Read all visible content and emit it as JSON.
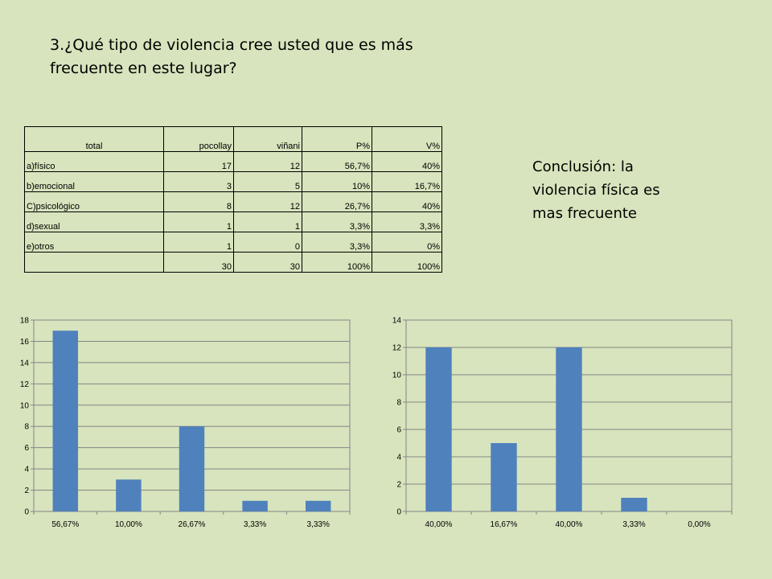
{
  "slide": {
    "title_line1": "3.¿Qué tipo de violencia cree usted que es más",
    "title_line2": "frecuente en este lugar?",
    "conclusion_line1": "Conclusión: la",
    "conclusion_line2": "violencia física es",
    "conclusion_line3": "mas frecuente",
    "background": "#d7e4bd"
  },
  "table": {
    "headers": [
      "total",
      "pocollay",
      "viñani",
      "P%",
      "V%"
    ],
    "rows": [
      [
        "a)físico",
        "17",
        "12",
        "56,7%",
        "40%"
      ],
      [
        "b)emocional",
        "3",
        "5",
        "10%",
        "16,7%"
      ],
      [
        "C)psicológico",
        "8",
        "12",
        "26,7%",
        "40%"
      ],
      [
        "d)sexual",
        "1",
        "1",
        "3,3%",
        "3,3%"
      ],
      [
        "e)otros",
        "1",
        "0",
        "3,3%",
        "0%"
      ],
      [
        "",
        "30",
        "30",
        "100%",
        "100%"
      ]
    ]
  },
  "chart_data": [
    {
      "type": "bar",
      "categories": [
        "56,67%",
        "10,00%",
        "26,67%",
        "3,33%",
        "3,33%"
      ],
      "values": [
        17,
        3,
        8,
        1,
        1
      ],
      "ylim": [
        0,
        18
      ],
      "yticks": [
        0,
        2,
        4,
        6,
        8,
        10,
        12,
        14,
        16,
        18
      ],
      "ytick_labels": [
        "0",
        "2",
        "4",
        "6",
        "8",
        "10",
        "12",
        "14",
        "16",
        "18"
      ],
      "grid": true,
      "bar_color": "#4f81bd"
    },
    {
      "type": "bar",
      "categories": [
        "40,00%",
        "16,67%",
        "40,00%",
        "3,33%",
        "0,00%"
      ],
      "values": [
        12,
        5,
        12,
        1,
        0
      ],
      "ylim": [
        0,
        14
      ],
      "yticks": [
        0,
        2,
        4,
        6,
        8,
        10,
        12,
        14
      ],
      "ytick_labels": [
        "0",
        "2",
        "4",
        "6",
        "8",
        "10",
        "12",
        "14"
      ],
      "grid": true,
      "bar_color": "#4f81bd"
    }
  ]
}
